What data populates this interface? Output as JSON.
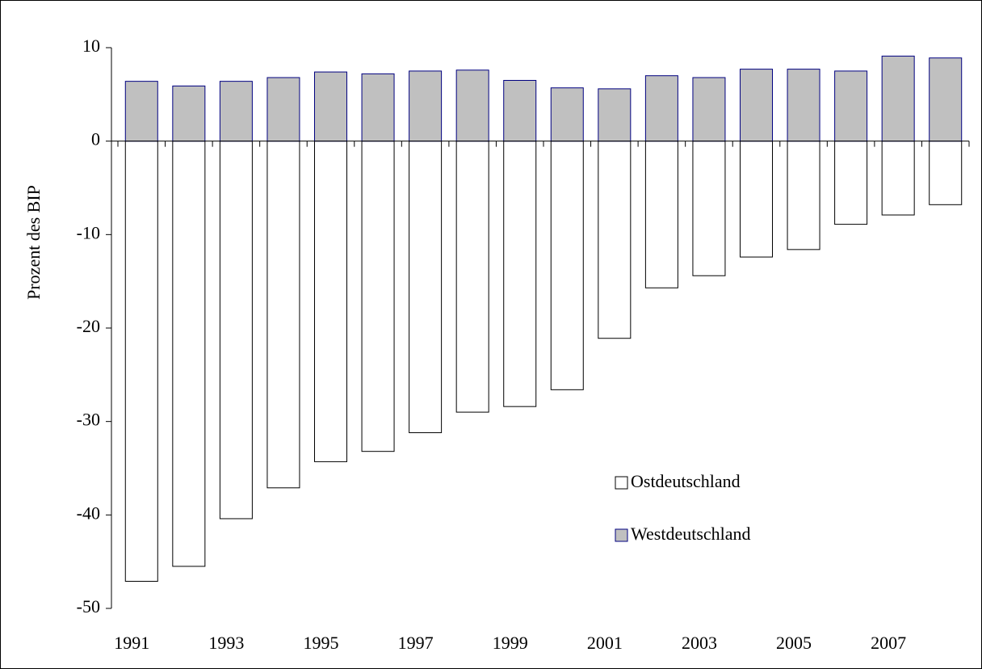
{
  "chart_data": {
    "type": "bar",
    "y_label": "Prozent des BIP",
    "categories": [
      "1991",
      null,
      "1993",
      null,
      "1995",
      null,
      "1997",
      null,
      "1999",
      null,
      "2001",
      null,
      "2003",
      null,
      "2005",
      null,
      "2007",
      null
    ],
    "series": [
      {
        "name": "Ostdeutschland",
        "color": "#ffffff",
        "edgecolor": "#000000",
        "values": [
          -47.1,
          -45.5,
          -40.4,
          -37.1,
          -34.3,
          -33.2,
          -31.2,
          -29.0,
          -28.4,
          -26.6,
          -21.1,
          -15.7,
          -14.4,
          -12.4,
          -11.6,
          -8.9,
          -7.9,
          -6.8
        ]
      },
      {
        "name": "Westdeutschland",
        "color": "#c0c0c0",
        "edgecolor": "#000080",
        "values": [
          6.4,
          5.9,
          6.4,
          6.8,
          7.4,
          7.2,
          7.5,
          7.6,
          6.5,
          5.7,
          5.6,
          7.0,
          6.8,
          7.7,
          7.7,
          7.5,
          9.1,
          8.9
        ]
      }
    ],
    "ylim": [
      -50,
      10
    ],
    "yticks": [
      -50,
      -40,
      -30,
      -20,
      -10,
      0,
      10
    ],
    "grid": false
  }
}
